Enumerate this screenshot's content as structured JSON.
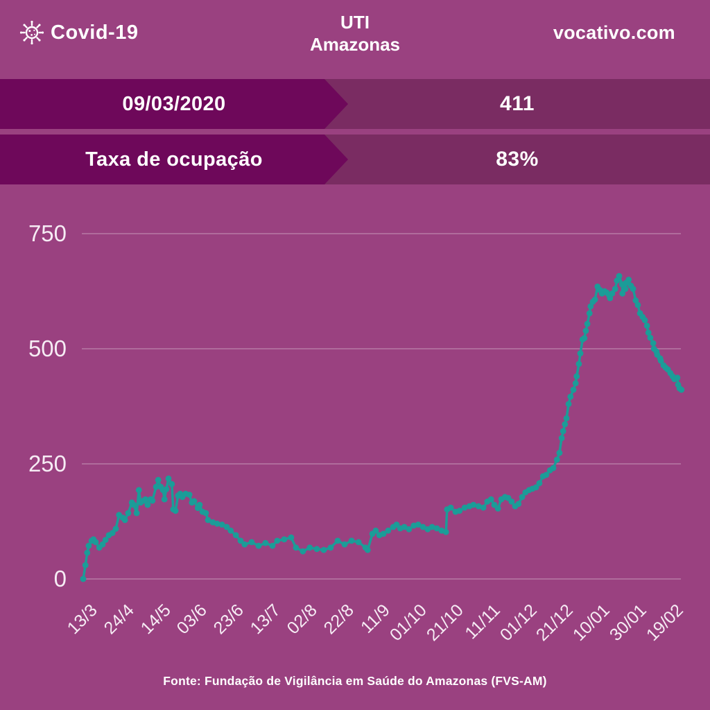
{
  "header": {
    "logo_label": "Covid-19",
    "title_line1": "UTI",
    "title_line2": "Amazonas",
    "site": "vocativo.com"
  },
  "banners": [
    {
      "label": "09/03/2020",
      "value": "411"
    },
    {
      "label": "Taxa de ocupação",
      "value": "83%"
    }
  ],
  "footer": {
    "source": "Fonte: Fundação de Vigilância em Saúde do Amazonas (FVS-AM)"
  },
  "colors": {
    "background": "#9a4180",
    "banner_dark": "#6e085a",
    "banner_medium": "#7a2c62",
    "series_teal": "#1b9c98",
    "text_white": "#ffffff",
    "gridline": "rgba(255,255,255,0.30)"
  },
  "chart_data": {
    "type": "line",
    "title": "UTI Amazonas",
    "xlabel": "",
    "ylabel": "",
    "grid": true,
    "legend": "none",
    "marker": "circle",
    "x_tick_labels": [
      "13/3",
      "24/4",
      "14/5",
      "03/6",
      "23/6",
      "13/7",
      "02/8",
      "22/8",
      "11/9",
      "01/10",
      "21/10",
      "11/11",
      "01/12",
      "21/12",
      "10/01",
      "30/01",
      "19/02"
    ],
    "y_ticks": [
      0,
      250,
      500,
      750
    ],
    "ylim": [
      0,
      800
    ],
    "xlim_tick_units": [
      0,
      16.4
    ],
    "series": [
      {
        "name": "UTI Amazonas",
        "color": "#1b9c98",
        "points": [
          [
            0,
            0
          ],
          [
            0.06,
            30
          ],
          [
            0.11,
            57
          ],
          [
            0.15,
            72
          ],
          [
            0.23,
            83
          ],
          [
            0.28,
            86
          ],
          [
            0.34,
            80
          ],
          [
            0.44,
            68
          ],
          [
            0.53,
            75
          ],
          [
            0.61,
            85
          ],
          [
            0.7,
            95
          ],
          [
            0.8,
            100
          ],
          [
            0.89,
            109
          ],
          [
            0.98,
            139
          ],
          [
            1.08,
            133
          ],
          [
            1.14,
            128
          ],
          [
            1.23,
            143
          ],
          [
            1.33,
            166
          ],
          [
            1.38,
            161
          ],
          [
            1.46,
            143
          ],
          [
            1.52,
            193
          ],
          [
            1.57,
            166
          ],
          [
            1.65,
            170
          ],
          [
            1.7,
            173
          ],
          [
            1.76,
            161
          ],
          [
            1.84,
            173
          ],
          [
            1.89,
            170
          ],
          [
            1.99,
            200
          ],
          [
            2.05,
            215
          ],
          [
            2.12,
            200
          ],
          [
            2.18,
            193
          ],
          [
            2.22,
            173
          ],
          [
            2.27,
            195
          ],
          [
            2.33,
            218
          ],
          [
            2.42,
            206
          ],
          [
            2.46,
            151
          ],
          [
            2.52,
            148
          ],
          [
            2.59,
            181
          ],
          [
            2.65,
            185
          ],
          [
            2.71,
            178
          ],
          [
            2.8,
            185
          ],
          [
            2.9,
            183
          ],
          [
            2.97,
            166
          ],
          [
            3.03,
            169
          ],
          [
            3.13,
            154
          ],
          [
            3.18,
            161
          ],
          [
            3.26,
            146
          ],
          [
            3.35,
            143
          ],
          [
            3.41,
            128
          ],
          [
            3.54,
            123
          ],
          [
            3.66,
            120
          ],
          [
            3.79,
            118
          ],
          [
            3.92,
            113
          ],
          [
            4.03,
            105
          ],
          [
            4.17,
            95
          ],
          [
            4.3,
            83
          ],
          [
            4.41,
            75
          ],
          [
            4.6,
            80
          ],
          [
            4.79,
            72
          ],
          [
            4.98,
            78
          ],
          [
            5.17,
            72
          ],
          [
            5.3,
            83
          ],
          [
            5.49,
            86
          ],
          [
            5.68,
            90
          ],
          [
            5.81,
            68
          ],
          [
            6,
            60
          ],
          [
            6.19,
            68
          ],
          [
            6.38,
            65
          ],
          [
            6.57,
            63
          ],
          [
            6.76,
            68
          ],
          [
            6.95,
            83
          ],
          [
            7.14,
            75
          ],
          [
            7.33,
            83
          ],
          [
            7.52,
            80
          ],
          [
            7.71,
            68
          ],
          [
            7.77,
            63
          ],
          [
            7.9,
            98
          ],
          [
            7.99,
            105
          ],
          [
            8.09,
            95
          ],
          [
            8.2,
            98
          ],
          [
            8.33,
            105
          ],
          [
            8.47,
            113
          ],
          [
            8.56,
            118
          ],
          [
            8.66,
            110
          ],
          [
            8.77,
            113
          ],
          [
            8.9,
            108
          ],
          [
            9.03,
            116
          ],
          [
            9.15,
            118
          ],
          [
            9.28,
            113
          ],
          [
            9.41,
            108
          ],
          [
            9.53,
            113
          ],
          [
            9.66,
            110
          ],
          [
            9.79,
            105
          ],
          [
            9.91,
            102
          ],
          [
            9.94,
            151
          ],
          [
            10.04,
            155
          ],
          [
            10.17,
            146
          ],
          [
            10.28,
            148
          ],
          [
            10.42,
            155
          ],
          [
            10.55,
            158
          ],
          [
            10.66,
            161
          ],
          [
            10.8,
            158
          ],
          [
            10.93,
            155
          ],
          [
            11.04,
            168
          ],
          [
            11.14,
            173
          ],
          [
            11.23,
            161
          ],
          [
            11.33,
            153
          ],
          [
            11.42,
            173
          ],
          [
            11.52,
            178
          ],
          [
            11.61,
            176
          ],
          [
            11.7,
            168
          ],
          [
            11.8,
            158
          ],
          [
            11.89,
            163
          ],
          [
            11.99,
            178
          ],
          [
            12.08,
            188
          ],
          [
            12.18,
            193
          ],
          [
            12.27,
            196
          ],
          [
            12.37,
            199
          ],
          [
            12.46,
            208
          ],
          [
            12.56,
            223
          ],
          [
            12.65,
            226
          ],
          [
            12.75,
            236
          ],
          [
            12.84,
            241
          ],
          [
            12.94,
            259
          ],
          [
            13.01,
            274
          ],
          [
            13.07,
            306
          ],
          [
            13.11,
            321
          ],
          [
            13.16,
            336
          ],
          [
            13.2,
            349
          ],
          [
            13.26,
            380
          ],
          [
            13.31,
            396
          ],
          [
            13.39,
            411
          ],
          [
            13.45,
            425
          ],
          [
            13.48,
            440
          ],
          [
            13.54,
            467
          ],
          [
            13.58,
            490
          ],
          [
            13.64,
            520
          ],
          [
            13.69,
            523
          ],
          [
            13.73,
            539
          ],
          [
            13.77,
            554
          ],
          [
            13.83,
            577
          ],
          [
            13.86,
            592
          ],
          [
            13.92,
            602
          ],
          [
            13.98,
            607
          ],
          [
            14.05,
            635
          ],
          [
            14.11,
            628
          ],
          [
            14.17,
            620
          ],
          [
            14.24,
            625
          ],
          [
            14.3,
            622
          ],
          [
            14.36,
            617
          ],
          [
            14.39,
            610
          ],
          [
            14.45,
            620
          ],
          [
            14.53,
            630
          ],
          [
            14.58,
            648
          ],
          [
            14.64,
            658
          ],
          [
            14.72,
            640
          ],
          [
            14.73,
            620
          ],
          [
            14.81,
            630
          ],
          [
            14.83,
            643
          ],
          [
            14.9,
            650
          ],
          [
            14.96,
            637
          ],
          [
            15.02,
            630
          ],
          [
            15.09,
            605
          ],
          [
            15.15,
            595
          ],
          [
            15.21,
            577
          ],
          [
            15.28,
            569
          ],
          [
            15.34,
            562
          ],
          [
            15.4,
            550
          ],
          [
            15.44,
            535
          ],
          [
            15.49,
            524
          ],
          [
            15.57,
            512
          ],
          [
            15.59,
            500
          ],
          [
            15.66,
            494
          ],
          [
            15.68,
            487
          ],
          [
            15.76,
            479
          ],
          [
            15.78,
            474
          ],
          [
            15.85,
            464
          ],
          [
            15.91,
            459
          ],
          [
            15.97,
            455
          ],
          [
            16.04,
            447
          ],
          [
            16.1,
            440
          ],
          [
            16.15,
            434
          ],
          [
            16.23,
            437
          ],
          [
            16.25,
            422
          ],
          [
            16.29,
            414
          ],
          [
            16.34,
            411
          ]
        ]
      }
    ]
  }
}
